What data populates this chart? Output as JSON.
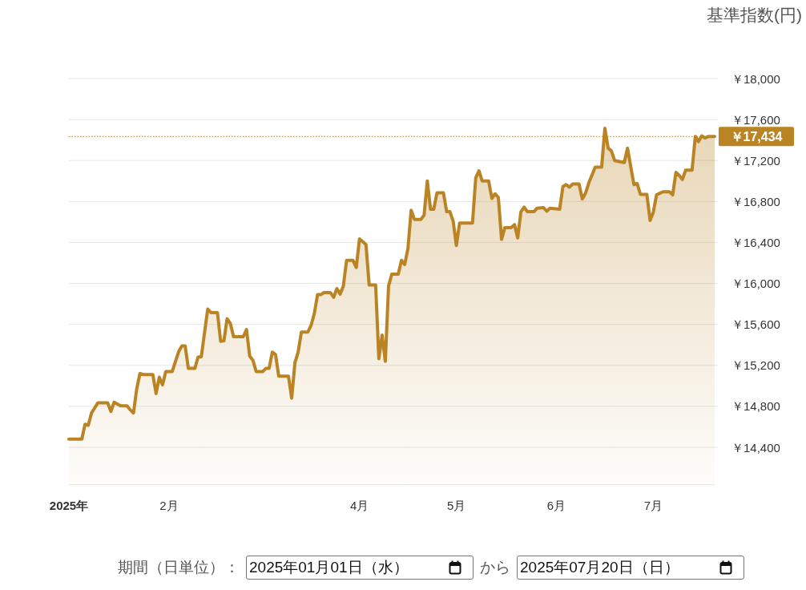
{
  "chart_data": {
    "type": "area",
    "ylabel": "基準指数(円)",
    "x": [
      "2025-01-01",
      "2025-01-05",
      "2025-01-06",
      "2025-01-07",
      "2025-01-08",
      "2025-01-10",
      "2025-01-13",
      "2025-01-14",
      "2025-01-15",
      "2025-01-17",
      "2025-01-19",
      "2025-01-20",
      "2025-01-21",
      "2025-01-22",
      "2025-01-23",
      "2025-01-24",
      "2025-01-27",
      "2025-01-28",
      "2025-01-29",
      "2025-01-30",
      "2025-01-31",
      "2025-02-02",
      "2025-02-04",
      "2025-02-05",
      "2025-02-06",
      "2025-02-07",
      "2025-02-09",
      "2025-02-10",
      "2025-02-11",
      "2025-02-13",
      "2025-02-14",
      "2025-02-16",
      "2025-02-17",
      "2025-02-18",
      "2025-02-19",
      "2025-02-20",
      "2025-02-21",
      "2025-02-24",
      "2025-02-25",
      "2025-02-26",
      "2025-02-27",
      "2025-02-28",
      "2025-03-02",
      "2025-03-03",
      "2025-03-04",
      "2025-03-05",
      "2025-03-06",
      "2025-03-07",
      "2025-03-10",
      "2025-03-11",
      "2025-03-12",
      "2025-03-13",
      "2025-03-14",
      "2025-03-16",
      "2025-03-17",
      "2025-03-18",
      "2025-03-19",
      "2025-03-20",
      "2025-03-21",
      "2025-03-23",
      "2025-03-24",
      "2025-03-25",
      "2025-03-26",
      "2025-03-27",
      "2025-03-28",
      "2025-03-30",
      "2025-03-31",
      "2025-04-01",
      "2025-04-03",
      "2025-04-04",
      "2025-04-06",
      "2025-04-07",
      "2025-04-08",
      "2025-04-09",
      "2025-04-10",
      "2025-04-11",
      "2025-04-13",
      "2025-04-14",
      "2025-04-15",
      "2025-04-16",
      "2025-04-17",
      "2025-04-18",
      "2025-04-20",
      "2025-04-21",
      "2025-04-22",
      "2025-04-23",
      "2025-04-24",
      "2025-04-25",
      "2025-04-27",
      "2025-04-28",
      "2025-04-29",
      "2025-04-30",
      "2025-05-01",
      "2025-05-02",
      "2025-05-06",
      "2025-05-07",
      "2025-05-08",
      "2025-05-09",
      "2025-05-11",
      "2025-05-12",
      "2025-05-13",
      "2025-05-14",
      "2025-05-15",
      "2025-05-16",
      "2025-05-18",
      "2025-05-19",
      "2025-05-20",
      "2025-05-21",
      "2025-05-22",
      "2025-05-23",
      "2025-05-25",
      "2025-05-26",
      "2025-05-28",
      "2025-05-29",
      "2025-05-30",
      "2025-06-02",
      "2025-06-03",
      "2025-06-04",
      "2025-06-05",
      "2025-06-06",
      "2025-06-08",
      "2025-06-09",
      "2025-06-10",
      "2025-06-11",
      "2025-06-13",
      "2025-06-15",
      "2025-06-16",
      "2025-06-17",
      "2025-06-18",
      "2025-06-19",
      "2025-06-22",
      "2025-06-23",
      "2025-06-25",
      "2025-06-26",
      "2025-06-27",
      "2025-06-29",
      "2025-06-30",
      "2025-07-01",
      "2025-07-02",
      "2025-07-04",
      "2025-07-06",
      "2025-07-07",
      "2025-07-08",
      "2025-07-09",
      "2025-07-10",
      "2025-07-11",
      "2025-07-13",
      "2025-07-14",
      "2025-07-15",
      "2025-07-16",
      "2025-07-17",
      "2025-07-18",
      "2025-07-20"
    ],
    "values": [
      14480,
      14480,
      14625,
      14615,
      14735,
      14835,
      14835,
      14750,
      14840,
      14805,
      14805,
      14765,
      14735,
      14970,
      15120,
      15110,
      15110,
      14925,
      15085,
      15010,
      15140,
      15140,
      15335,
      15390,
      15390,
      15170,
      15170,
      15280,
      15285,
      15750,
      15715,
      15715,
      15435,
      15440,
      15655,
      15610,
      15480,
      15480,
      15550,
      15290,
      15250,
      15140,
      15140,
      15170,
      15170,
      15330,
      15305,
      15095,
      15095,
      14880,
      15225,
      15330,
      15525,
      15525,
      15590,
      15705,
      15890,
      15890,
      15910,
      15910,
      15865,
      15950,
      15895,
      15975,
      16225,
      16225,
      16155,
      16435,
      16380,
      15985,
      15985,
      15265,
      15495,
      15240,
      15975,
      16090,
      16090,
      16225,
      16185,
      16340,
      16715,
      16625,
      16625,
      16665,
      17000,
      16725,
      16725,
      16885,
      16885,
      16700,
      16700,
      16610,
      16370,
      16590,
      16590,
      17030,
      17100,
      17000,
      17000,
      16830,
      16875,
      16840,
      16430,
      16545,
      16545,
      16575,
      16445,
      16700,
      16745,
      16700,
      16700,
      16735,
      16740,
      16705,
      16735,
      16725,
      16945,
      16965,
      16940,
      16970,
      16970,
      16825,
      16880,
      16980,
      17135,
      17135,
      17515,
      17320,
      17295,
      17200,
      17180,
      17320,
      16965,
      16975,
      16870,
      16870,
      16615,
      16695,
      16865,
      16895,
      16895,
      16865,
      17085,
      17055,
      17015,
      17105,
      17105,
      17435,
      17385,
      17440,
      17420,
      17434,
      17434
    ],
    "color": "#ba8425",
    "xlim": [
      "2025-01-01",
      "2025-07-20"
    ],
    "xticks": [
      {
        "value": "2025-01-01",
        "label": "2025年"
      },
      {
        "value": "2025-02-01",
        "label": "2月"
      },
      {
        "value": "2025-04-01",
        "label": "4月"
      },
      {
        "value": "2025-05-01",
        "label": "5月"
      },
      {
        "value": "2025-06-01",
        "label": "6月"
      },
      {
        "value": "2025-07-01",
        "label": "7月"
      }
    ],
    "ylim": [
      14040,
      18000
    ],
    "yticks": [
      {
        "value": 14400,
        "label": "￥14,400"
      },
      {
        "value": 14800,
        "label": "￥14,800"
      },
      {
        "value": 15200,
        "label": "￥15,200"
      },
      {
        "value": 15600,
        "label": "￥15,600"
      },
      {
        "value": 16000,
        "label": "￥16,000"
      },
      {
        "value": 16400,
        "label": "￥16,400"
      },
      {
        "value": 16800,
        "label": "￥16,800"
      },
      {
        "value": 17200,
        "label": "￥17,200"
      },
      {
        "value": 17600,
        "label": "￥17,600"
      },
      {
        "value": 18000,
        "label": "￥18,000"
      }
    ],
    "grid": "y",
    "ref_lines": [
      {
        "axis": "y",
        "value": 17434,
        "label": "￥17,434",
        "color": "#ba8425",
        "line_style": "dotted"
      }
    ],
    "annotations": [
      "期間（日単位）：",
      "2025年01月01日（水）",
      "から",
      "2025年07月20日（日）"
    ]
  }
}
